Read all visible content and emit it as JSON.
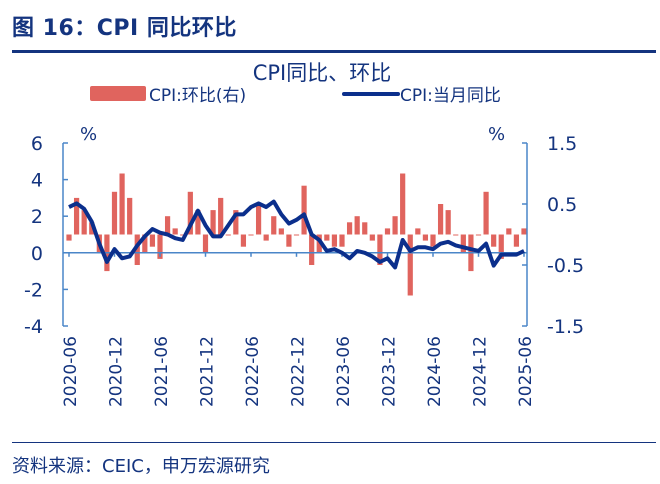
{
  "figure_title": "图 16：CPI 同比环比",
  "source": "资料来源：CEIC，申万宏源研究",
  "colors": {
    "bar": "#e0645e",
    "line": "#0b2f8c",
    "axis": "#4a86c8",
    "text": "#14347f"
  },
  "chart_data": {
    "type": "bar+line",
    "title": "CPI同比、环比",
    "legend_placement": "top",
    "left_axis": {
      "unit_label": "%",
      "ylim": [
        -4,
        6
      ],
      "ticks": [
        6,
        4,
        2,
        0,
        -2,
        -4
      ]
    },
    "right_axis": {
      "unit_label": "%",
      "ylim": [
        -1.5,
        1.5
      ],
      "ticks": [
        1.5,
        0.5,
        -0.5,
        -1.5
      ]
    },
    "x_tick_labels": [
      "2020-06",
      "2020-12",
      "2021-06",
      "2021-12",
      "2022-06",
      "2022-12",
      "2023-06",
      "2023-12",
      "2024-06",
      "2024-12",
      "2025-06"
    ],
    "x": [
      "2020-06",
      "2020-07",
      "2020-08",
      "2020-09",
      "2020-10",
      "2020-11",
      "2020-12",
      "2021-01",
      "2021-02",
      "2021-03",
      "2021-04",
      "2021-05",
      "2021-06",
      "2021-07",
      "2021-08",
      "2021-09",
      "2021-10",
      "2021-11",
      "2021-12",
      "2022-01",
      "2022-02",
      "2022-03",
      "2022-04",
      "2022-05",
      "2022-06",
      "2022-07",
      "2022-08",
      "2022-09",
      "2022-10",
      "2022-11",
      "2022-12",
      "2023-01",
      "2023-02",
      "2023-03",
      "2023-04",
      "2023-05",
      "2023-06",
      "2023-07",
      "2023-08",
      "2023-09",
      "2023-10",
      "2023-11",
      "2023-12",
      "2024-01",
      "2024-02",
      "2024-03",
      "2024-04",
      "2024-05",
      "2024-06",
      "2024-07",
      "2024-08",
      "2024-09",
      "2024-10",
      "2024-11",
      "2024-12",
      "2025-01",
      "2025-02",
      "2025-03",
      "2025-04",
      "2025-05",
      "2025-06"
    ],
    "series": [
      {
        "name": "CPI:环比(右)",
        "type": "bar",
        "axis": "right",
        "values": [
          -0.1,
          0.6,
          0.4,
          0.2,
          -0.3,
          -0.6,
          0.7,
          1.0,
          0.6,
          -0.5,
          -0.3,
          -0.2,
          -0.4,
          0.3,
          0.1,
          0.0,
          0.7,
          0.4,
          -0.3,
          0.4,
          0.6,
          0.0,
          0.4,
          -0.2,
          0.0,
          0.5,
          -0.1,
          0.3,
          0.1,
          -0.2,
          0.0,
          0.8,
          -0.5,
          -0.3,
          -0.1,
          -0.2,
          -0.2,
          0.2,
          0.3,
          0.2,
          -0.1,
          -0.5,
          0.1,
          0.3,
          1.0,
          -1.0,
          0.1,
          -0.1,
          -0.2,
          0.5,
          0.4,
          0.0,
          -0.3,
          -0.6,
          0.0,
          0.7,
          -0.2,
          -0.4,
          0.1,
          -0.2,
          0.1
        ]
      },
      {
        "name": "CPI:当月同比",
        "type": "line",
        "axis": "left",
        "values": [
          2.5,
          2.7,
          2.4,
          1.7,
          0.5,
          -0.5,
          0.2,
          -0.3,
          -0.2,
          0.4,
          0.9,
          1.3,
          1.1,
          1.0,
          0.8,
          0.7,
          1.5,
          2.3,
          1.5,
          0.9,
          0.9,
          1.5,
          2.1,
          2.1,
          2.5,
          2.7,
          2.5,
          2.8,
          2.1,
          1.6,
          1.8,
          2.1,
          1.0,
          0.7,
          0.1,
          0.2,
          0.0,
          -0.3,
          0.1,
          0.0,
          -0.2,
          -0.5,
          -0.3,
          -0.8,
          0.7,
          0.1,
          0.3,
          0.3,
          0.2,
          0.5,
          0.6,
          0.4,
          0.3,
          0.2,
          0.1,
          0.5,
          -0.7,
          -0.1,
          -0.1,
          -0.1,
          0.1
        ]
      }
    ]
  }
}
